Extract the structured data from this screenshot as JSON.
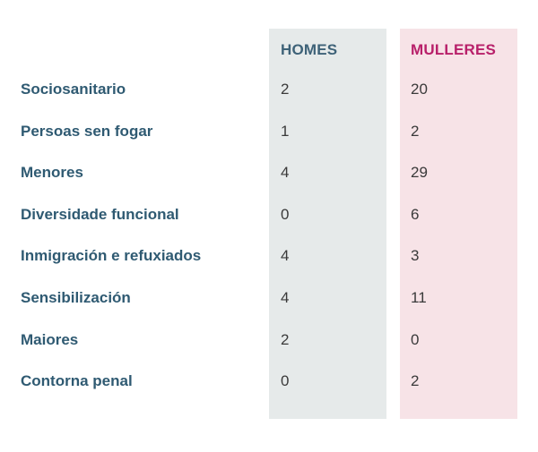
{
  "chart_data": {
    "type": "table",
    "columns": [
      "HOMES",
      "MULLERES"
    ],
    "rows": [
      {
        "label": "Sociosanitario",
        "homes": "2",
        "mulleres": "20"
      },
      {
        "label": "Persoas sen fogar",
        "homes": "1",
        "mulleres": "2"
      },
      {
        "label": "Menores",
        "homes": "4",
        "mulleres": "29"
      },
      {
        "label": "Diversidade funcional",
        "homes": "0",
        "mulleres": "6"
      },
      {
        "label": "Inmigración e refuxiados",
        "homes": "4",
        "mulleres": "3"
      },
      {
        "label": "Sensibilización",
        "homes": "4",
        "mulleres": "11"
      },
      {
        "label": "Maiores",
        "homes": "2",
        "mulleres": "0"
      },
      {
        "label": "Contorna penal",
        "homes": "0",
        "mulleres": "2"
      }
    ],
    "colors": {
      "homes_header": "#3e6278",
      "mulleres_header": "#b8206a",
      "homes_bg": "#e6eaea",
      "mulleres_bg": "#f7e3e7",
      "row_label": "#2f5a72",
      "value": "#3a3a3a"
    }
  }
}
